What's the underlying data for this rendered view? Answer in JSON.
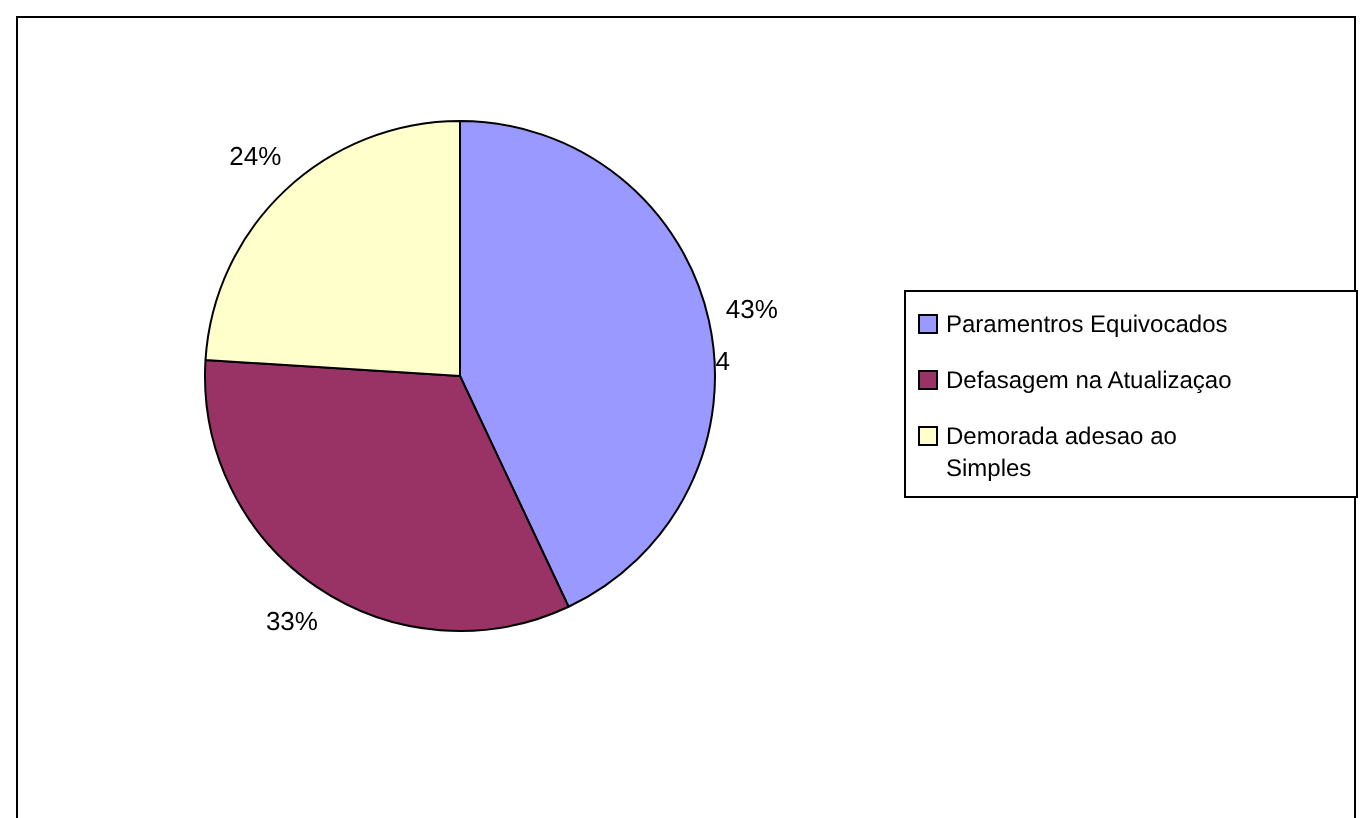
{
  "chart_data": {
    "type": "pie",
    "categories": [
      "Paramentros Equivocados",
      "Defasagem na Atualizaçao",
      "Demorada adesao ao Simples"
    ],
    "values": [
      43,
      33,
      24
    ],
    "colors": [
      "#9999ff",
      "#993366",
      "#ffffcc"
    ],
    "legend": "right",
    "value_labels": [
      "43%",
      "33%",
      "24%"
    ],
    "annotations": [
      "4"
    ]
  }
}
